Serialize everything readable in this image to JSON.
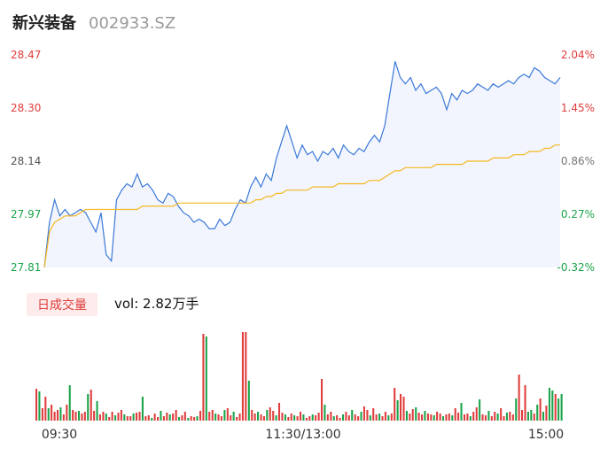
{
  "header": {
    "stock_name": "新兴装备",
    "stock_code": "002933.SZ"
  },
  "volume_panel": {
    "badge_label": "日成交量",
    "vol_label": "vol: 2.82万手"
  },
  "colors": {
    "price_line": "#3a78d8",
    "avg_line": "#f5b820",
    "fill": "#e9eefb",
    "up": "#e03c3c",
    "down": "#1aa34a",
    "neutral": "#555555"
  },
  "chart_data": [
    {
      "type": "line",
      "title": "",
      "y_left_ticks": [
        "28.47",
        "28.30",
        "28.14",
        "27.97",
        "27.81"
      ],
      "y_right_ticks": [
        "2.04%",
        "1.45%",
        "0.86%",
        "0.27%",
        "-0.32%"
      ],
      "x_ticks": [
        "09:30",
        "11:30/13:00",
        "15:00"
      ],
      "ylim": [
        27.81,
        28.47
      ],
      "series": [
        {
          "values": [
            27.81,
            27.95,
            28.02,
            27.97,
            27.99,
            27.97,
            27.98,
            27.99,
            27.98,
            27.95,
            27.92,
            27.98,
            27.85,
            27.83,
            28.02,
            28.05,
            28.07,
            28.06,
            28.1,
            28.06,
            28.07,
            28.05,
            28.02,
            28.01,
            28.04,
            28.03,
            28.0,
            27.98,
            27.97,
            27.95,
            27.96,
            27.95,
            27.93,
            27.93,
            27.96,
            27.94,
            27.95,
            27.99,
            28.02,
            28.01,
            28.06,
            28.09,
            28.06,
            28.1,
            28.08,
            28.15,
            28.2,
            28.25,
            28.2,
            28.15,
            28.19,
            28.16,
            28.17,
            28.14,
            28.17,
            28.16,
            28.18,
            28.15,
            28.19,
            28.17,
            28.16,
            28.18,
            28.17,
            28.2,
            28.22,
            28.2,
            28.25,
            28.35,
            28.45,
            28.4,
            28.38,
            28.4,
            28.36,
            28.38,
            28.35,
            28.36,
            28.37,
            28.35,
            28.3,
            28.35,
            28.33,
            28.36,
            28.35,
            28.36,
            28.38,
            28.37,
            28.36,
            28.38,
            28.37,
            28.38,
            28.39,
            28.38,
            28.4,
            28.41,
            28.4,
            28.43,
            28.42,
            28.4,
            28.39,
            28.38,
            28.4
          ]
        },
        {
          "values": [
            27.81,
            27.92,
            27.95,
            27.96,
            27.97,
            27.97,
            27.97,
            27.98,
            27.99,
            27.99,
            27.99,
            27.99,
            27.99,
            27.99,
            27.99,
            27.99,
            27.99,
            27.99,
            27.99,
            28.0,
            28.0,
            28.0,
            28.0,
            28.0,
            28.0,
            28.0,
            28.01,
            28.01,
            28.01,
            28.01,
            28.01,
            28.01,
            28.01,
            28.01,
            28.01,
            28.01,
            28.01,
            28.01,
            28.01,
            28.01,
            28.01,
            28.02,
            28.02,
            28.03,
            28.03,
            28.04,
            28.04,
            28.05,
            28.05,
            28.05,
            28.05,
            28.05,
            28.06,
            28.06,
            28.06,
            28.06,
            28.06,
            28.07,
            28.07,
            28.07,
            28.07,
            28.07,
            28.07,
            28.08,
            28.08,
            28.08,
            28.09,
            28.1,
            28.11,
            28.11,
            28.12,
            28.12,
            28.12,
            28.12,
            28.12,
            28.12,
            28.13,
            28.13,
            28.13,
            28.13,
            28.13,
            28.13,
            28.14,
            28.14,
            28.14,
            28.14,
            28.14,
            28.15,
            28.15,
            28.15,
            28.15,
            28.16,
            28.16,
            28.16,
            28.17,
            28.17,
            28.17,
            28.18,
            28.18,
            28.19,
            28.19
          ]
        }
      ]
    },
    {
      "type": "bar",
      "title": "",
      "values": [
        36,
        33,
        14,
        27,
        14,
        18,
        10,
        12,
        15,
        7,
        18,
        40,
        12,
        10,
        11,
        8,
        10,
        30,
        35,
        11,
        22,
        7,
        10,
        8,
        4,
        10,
        6,
        9,
        12,
        7,
        5,
        5,
        8,
        9,
        10,
        27,
        5,
        6,
        3,
        8,
        4,
        11,
        5,
        9,
        7,
        8,
        12,
        4,
        6,
        10,
        3,
        5,
        4,
        5,
        11,
        98,
        95,
        10,
        12,
        8,
        7,
        5,
        12,
        14,
        6,
        10,
        4,
        8,
        100,
        100,
        45,
        12,
        8,
        10,
        7,
        5,
        12,
        15,
        11,
        6,
        20,
        9,
        7,
        4,
        8,
        6,
        5,
        10,
        7,
        3,
        5,
        7,
        6,
        9,
        47,
        18,
        7,
        10,
        5,
        6,
        3,
        7,
        10,
        6,
        12,
        7,
        5,
        10,
        16,
        12,
        6,
        14,
        7,
        8,
        5,
        10,
        6,
        8,
        37,
        23,
        30,
        27,
        11,
        8,
        13,
        15,
        9,
        7,
        11,
        8,
        7,
        6,
        10,
        8,
        5,
        7,
        8,
        6,
        14,
        9,
        20,
        7,
        8,
        5,
        10,
        15,
        24,
        7,
        6,
        11,
        5,
        10,
        8,
        14,
        5,
        9,
        10,
        7,
        25,
        52,
        12,
        40,
        10,
        12,
        8,
        18,
        25,
        10,
        17,
        37,
        34,
        30,
        25,
        30
      ],
      "colors": [
        "up",
        "down",
        "up",
        "up",
        "down",
        "up",
        "up",
        "up",
        "down",
        "up",
        "up",
        "down",
        "up",
        "up",
        "down",
        "up",
        "up",
        "down",
        "up",
        "up",
        "down",
        "up",
        "up",
        "down",
        "up",
        "up",
        "down",
        "up",
        "up",
        "down",
        "up",
        "up",
        "down",
        "up",
        "up",
        "down",
        "up",
        "up",
        "down",
        "up",
        "up",
        "down",
        "up",
        "up",
        "down",
        "up",
        "up",
        "down",
        "up",
        "up",
        "down",
        "up",
        "up",
        "down",
        "up",
        "up",
        "down",
        "up",
        "up",
        "down",
        "up",
        "up",
        "down",
        "up",
        "up",
        "down",
        "up",
        "up",
        "up",
        "up",
        "down",
        "up",
        "up",
        "down",
        "up",
        "up",
        "down",
        "up",
        "up",
        "down",
        "up",
        "up",
        "down",
        "up",
        "up",
        "down",
        "up",
        "up",
        "down",
        "up",
        "up",
        "down",
        "up",
        "up",
        "up",
        "down",
        "up",
        "up",
        "down",
        "up",
        "up",
        "down",
        "up",
        "up",
        "down",
        "up",
        "up",
        "down",
        "up",
        "up",
        "down",
        "up",
        "up",
        "down",
        "up",
        "up",
        "down",
        "up",
        "up",
        "down",
        "up",
        "up",
        "down",
        "up",
        "up",
        "down",
        "up",
        "up",
        "down",
        "up",
        "up",
        "down",
        "up",
        "up",
        "down",
        "up",
        "up",
        "down",
        "up",
        "up",
        "down",
        "up",
        "up",
        "down",
        "up",
        "up",
        "down",
        "up",
        "up",
        "down",
        "up",
        "up",
        "down",
        "up",
        "up",
        "down",
        "up",
        "up",
        "down",
        "up",
        "up",
        "up",
        "down",
        "down",
        "up",
        "down",
        "up",
        "down",
        "up",
        "down",
        "down",
        "up",
        "down",
        "down",
        "up"
      ]
    }
  ]
}
